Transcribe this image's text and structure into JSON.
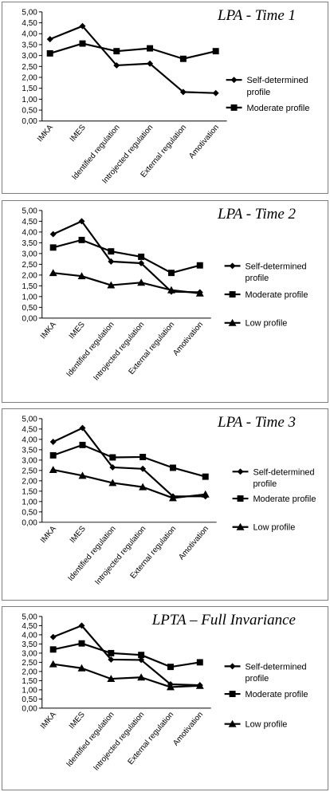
{
  "chart_data": [
    {
      "type": "line",
      "title": "LPA - Time 1",
      "categories": [
        "IMKA",
        "IMES",
        "Identified regulation",
        "Introjected regulation",
        "External regulation",
        "Amotivation"
      ],
      "ylim": [
        0,
        5
      ],
      "yticks": [
        "0,00",
        "0,50",
        "1,00",
        "1,50",
        "2,00",
        "2,50",
        "3,00",
        "3,50",
        "4,00",
        "4,50",
        "5,00"
      ],
      "grid": false,
      "legend_position": "right",
      "series": [
        {
          "name": "Self-determined profile",
          "marker": "diamond",
          "values": [
            3.75,
            4.35,
            2.55,
            2.63,
            1.33,
            1.28
          ]
        },
        {
          "name": "Moderate profile",
          "marker": "square",
          "values": [
            3.1,
            3.55,
            3.2,
            3.33,
            2.85,
            3.2
          ]
        }
      ]
    },
    {
      "type": "line",
      "title": "LPA - Time 2",
      "categories": [
        "IMKA",
        "IMES",
        "Identified regulation",
        "Introjected regulation",
        "External regulation",
        "Amotivation"
      ],
      "ylim": [
        0,
        5
      ],
      "yticks": [
        "0,00",
        "0,50",
        "1,00",
        "1,50",
        "2,00",
        "2,50",
        "3,00",
        "3,50",
        "4,00",
        "4,50",
        "5,00"
      ],
      "grid": false,
      "legend_position": "right",
      "series": [
        {
          "name": "Self-determined profile",
          "marker": "diamond",
          "values": [
            3.9,
            4.5,
            2.63,
            2.55,
            1.23,
            1.2
          ]
        },
        {
          "name": "Moderate profile",
          "marker": "square",
          "values": [
            3.28,
            3.63,
            3.1,
            2.85,
            2.1,
            2.45
          ]
        },
        {
          "name": "Low profile",
          "marker": "triangle",
          "values": [
            2.1,
            1.95,
            1.53,
            1.65,
            1.3,
            1.15
          ]
        }
      ]
    },
    {
      "type": "line",
      "title": "LPA - Time 3",
      "categories": [
        "IMKA",
        "IMES",
        "Identified regulation",
        "Introjected regulation",
        "External regulation",
        "Amotivation"
      ],
      "ylim": [
        0,
        5
      ],
      "yticks": [
        "0,00",
        "0,50",
        "1,00",
        "1,50",
        "2,00",
        "2,50",
        "3,00",
        "3,50",
        "4,00",
        "4,50",
        "5,00"
      ],
      "grid": false,
      "legend_position": "right",
      "series": [
        {
          "name": "Self-determined profile",
          "marker": "diamond",
          "values": [
            3.88,
            4.55,
            2.65,
            2.58,
            1.25,
            1.25
          ]
        },
        {
          "name": "Moderate profile",
          "marker": "square",
          "values": [
            3.23,
            3.73,
            3.13,
            3.15,
            2.63,
            2.2
          ]
        },
        {
          "name": "Low profile",
          "marker": "triangle",
          "values": [
            2.53,
            2.25,
            1.9,
            1.7,
            1.17,
            1.35
          ]
        }
      ]
    },
    {
      "type": "line",
      "title": "LPTA – Full Invariance",
      "categories": [
        "IMKA",
        "IMES",
        "Identified regulation",
        "Introjected regulation",
        "External regulation",
        "Amotivation"
      ],
      "ylim": [
        0,
        5
      ],
      "yticks": [
        "0,00",
        "0,50",
        "1,00",
        "1,50",
        "2,00",
        "2,50",
        "3,00",
        "3,50",
        "4,00",
        "4,50",
        "5,00"
      ],
      "grid": false,
      "legend_position": "right",
      "series": [
        {
          "name": "Self-determined profile",
          "marker": "diamond",
          "values": [
            3.88,
            4.5,
            2.65,
            2.63,
            1.3,
            1.25
          ]
        },
        {
          "name": "Moderate profile",
          "marker": "square",
          "values": [
            3.2,
            3.53,
            3.0,
            2.9,
            2.25,
            2.5
          ]
        },
        {
          "name": "Low profile",
          "marker": "triangle",
          "values": [
            2.4,
            2.18,
            1.6,
            1.68,
            1.15,
            1.22
          ]
        }
      ]
    }
  ]
}
